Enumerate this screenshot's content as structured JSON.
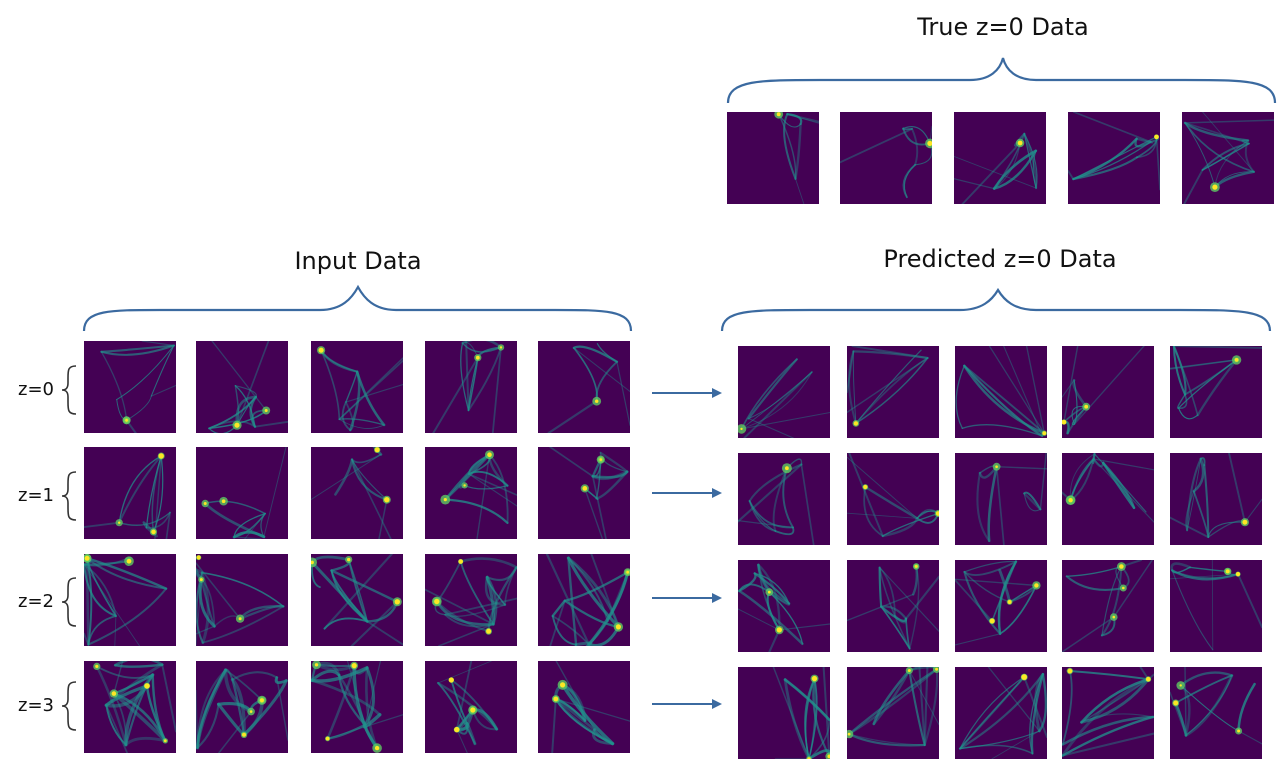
{
  "titles": {
    "true_z0": "True z=0 Data",
    "input": "Input Data",
    "predicted": "Predicted z=0 Data"
  },
  "row_labels": [
    "z=0",
    "z=1",
    "z=2",
    "z=3"
  ],
  "colors": {
    "background": "#440154",
    "filament": "#21918c",
    "bright": "#5ec962",
    "peak": "#fde725",
    "brace": "#3b6aa0",
    "arrow": "#3b6aa0"
  },
  "grids": {
    "true_rows": 1,
    "input_rows": 4,
    "predicted_rows": 4,
    "columns": 5
  }
}
